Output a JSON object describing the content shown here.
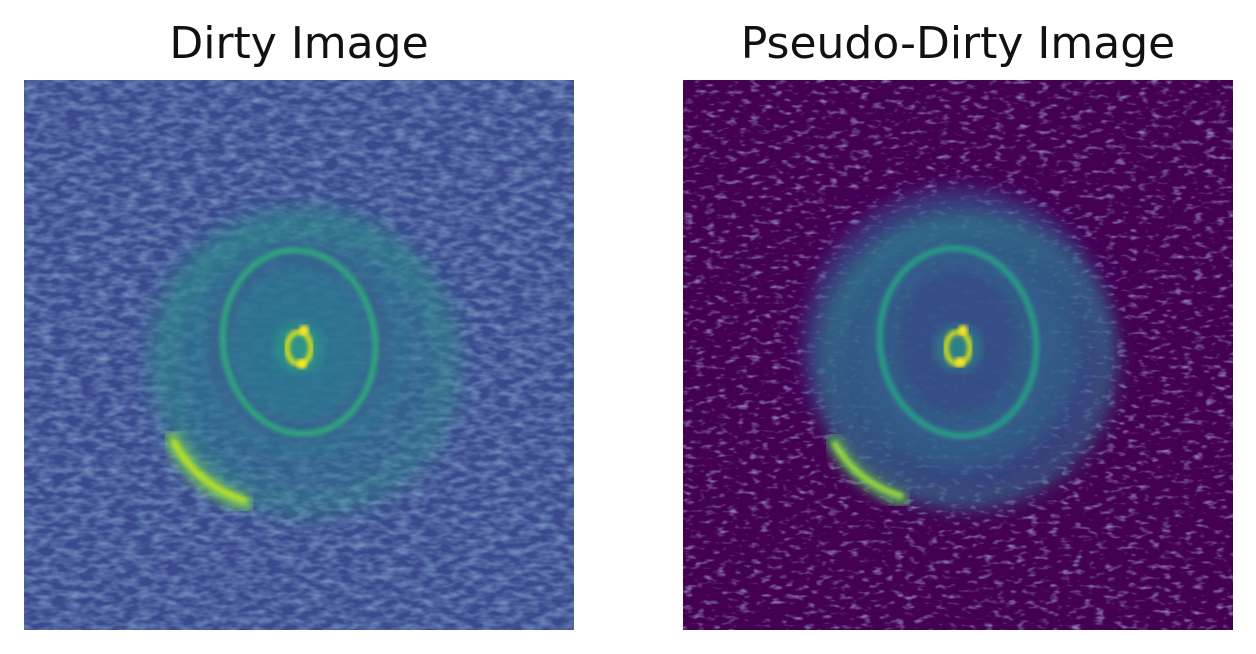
{
  "left_panel": {
    "title": "Dirty Image",
    "colormap": "viridis",
    "background_color": "#3b4a8e"
  },
  "right_panel": {
    "title": "Pseudo-Dirty Image",
    "colormap": "viridis",
    "background_color": "#440154"
  },
  "palette": {
    "dark_purple": "#440154",
    "blue": "#3b528b",
    "teal": "#21918c",
    "green": "#35b779",
    "yellow": "#fde725"
  }
}
